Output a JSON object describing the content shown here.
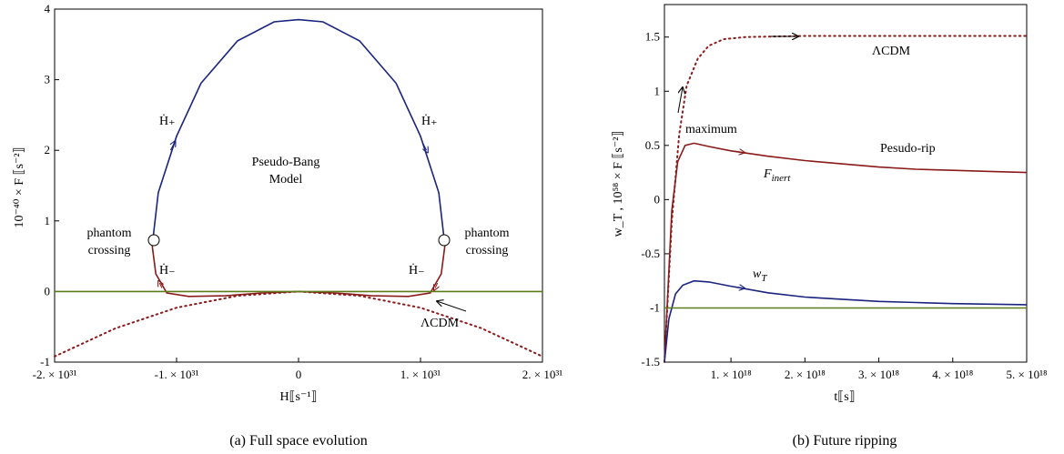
{
  "chart_data": [
    {
      "type": "line",
      "caption": "(a)   Full space evolution",
      "xlabel": "H⟦s⁻¹⟧",
      "ylabel": "10⁻⁴⁰ × F ⟦s⁻²⟧",
      "xlim": [
        -2e+31,
        2e+31
      ],
      "ylim": [
        -1,
        4
      ],
      "xticks": [
        {
          "v": -2e+31,
          "label": "-2. × 10³¹"
        },
        {
          "v": -1e+31,
          "label": "-1. × 10³¹"
        },
        {
          "v": 0,
          "label": "0"
        },
        {
          "v": 1e+31,
          "label": "1. × 10³¹"
        },
        {
          "v": 2e+31,
          "label": "2. × 10³¹"
        }
      ],
      "yticks": [
        {
          "v": -1,
          "label": "-1"
        },
        {
          "v": 0,
          "label": "0"
        },
        {
          "v": 1,
          "label": "1"
        },
        {
          "v": 2,
          "label": "2"
        },
        {
          "v": 3,
          "label": "3"
        },
        {
          "v": 4,
          "label": "4"
        }
      ],
      "series": [
        {
          "key": "upper",
          "color": "#1a237e",
          "style": "solid",
          "points": [
            [
              -1.2e+31,
              0.65
            ],
            [
              -1.15e+31,
              1.4
            ],
            [
              -1e+31,
              2.2
            ],
            [
              -8e+30,
              2.95
            ],
            [
              -5e+30,
              3.55
            ],
            [
              -2e+30,
              3.82
            ],
            [
              0,
              3.85
            ],
            [
              2e+30,
              3.82
            ],
            [
              5e+30,
              3.55
            ],
            [
              8e+30,
              2.95
            ],
            [
              1e+31,
              2.2
            ],
            [
              1.15e+31,
              1.4
            ],
            [
              1.2e+31,
              0.65
            ]
          ]
        },
        {
          "key": "lower",
          "color": "#8b1a1a",
          "style": "solid",
          "points": [
            [
              -1.2e+31,
              0.65
            ],
            [
              -1.17e+31,
              0.25
            ],
            [
              -1.08e+31,
              -0.02
            ],
            [
              -9e+30,
              -0.07
            ],
            [
              -6e+30,
              -0.06
            ],
            [
              -3e+30,
              -0.02
            ],
            [
              0,
              0
            ],
            [
              3e+30,
              -0.02
            ],
            [
              6e+30,
              -0.06
            ],
            [
              9e+30,
              -0.07
            ],
            [
              1.08e+31,
              -0.02
            ],
            [
              1.17e+31,
              0.25
            ],
            [
              1.2e+31,
              0.65
            ]
          ]
        },
        {
          "key": "lcdm",
          "color": "#8b1a1a",
          "style": "dotted",
          "points": [
            [
              -2e+31,
              -0.92
            ],
            [
              -1.5e+31,
              -0.52
            ],
            [
              -1e+31,
              -0.23
            ],
            [
              -5e+30,
              -0.06
            ],
            [
              0,
              0
            ],
            [
              5e+30,
              -0.06
            ],
            [
              1e+31,
              -0.23
            ],
            [
              1.5e+31,
              -0.52
            ],
            [
              2e+31,
              -0.92
            ]
          ]
        },
        {
          "key": "zero",
          "color": "#5a7d1a",
          "style": "solid",
          "points": [
            [
              -2e+31,
              0
            ],
            [
              2e+31,
              0
            ]
          ]
        }
      ],
      "annotations": {
        "h_plus_left": "Ḣ₊",
        "h_plus_right": "Ḣ₊",
        "h_minus_left": "Ḣ₋",
        "h_minus_right": "Ḣ₋",
        "model_line1": "Pseudo-Bang",
        "model_line2": "Model",
        "phantom_left_1": "phantom",
        "phantom_left_2": "crossing",
        "phantom_right_1": "phantom",
        "phantom_right_2": "crossing",
        "lcdm": "ΛCDM"
      }
    },
    {
      "type": "line",
      "caption": "(b)   Future ripping",
      "xlabel": "t⟦s⟧",
      "ylabel": "w_T ,  10⁵⁸ × F ⟦s⁻²⟧",
      "xlim": [
        1e+17,
        5e+18
      ],
      "ylim": [
        -1.5,
        1.8
      ],
      "xticks": [
        {
          "v": 1e+18,
          "label": "1. × 10¹⁸"
        },
        {
          "v": 2e+18,
          "label": "2. × 10¹⁸"
        },
        {
          "v": 3e+18,
          "label": "3. × 10¹⁸"
        },
        {
          "v": 4e+18,
          "label": "4. × 10¹⁸"
        },
        {
          "v": 5e+18,
          "label": "5. × 10¹⁸"
        }
      ],
      "yticks": [
        {
          "v": -1.5,
          "label": "-1.5"
        },
        {
          "v": -1,
          "label": "-1"
        },
        {
          "v": -0.5,
          "label": "-0.5"
        },
        {
          "v": 0,
          "label": "0"
        },
        {
          "v": 0.5,
          "label": "0.5"
        },
        {
          "v": 1,
          "label": "1"
        },
        {
          "v": 1.5,
          "label": "1.5"
        }
      ],
      "series": [
        {
          "key": "lcdm",
          "color": "#8b1a1a",
          "style": "dotted",
          "points": [
            [
              1e+17,
              -1.5
            ],
            [
              2e+17,
              -0.2
            ],
            [
              3e+17,
              0.6
            ],
            [
              4e+17,
              1.05
            ],
            [
              5.5e+17,
              1.3
            ],
            [
              7e+17,
              1.42
            ],
            [
              9e+17,
              1.48
            ],
            [
              1.2e+18,
              1.5
            ],
            [
              2e+18,
              1.51
            ],
            [
              3e+18,
              1.51
            ],
            [
              4e+18,
              1.51
            ],
            [
              5e+18,
              1.51
            ]
          ]
        },
        {
          "key": "finert",
          "color": "#8b1a1a",
          "style": "solid",
          "points": [
            [
              1e+17,
              -1.5
            ],
            [
              1.5e+17,
              -0.8
            ],
            [
              2e+17,
              -0.1
            ],
            [
              2.8e+17,
              0.35
            ],
            [
              3.8e+17,
              0.5
            ],
            [
              5e+17,
              0.52
            ],
            [
              7e+17,
              0.49
            ],
            [
              1e+18,
              0.45
            ],
            [
              1.5e+18,
              0.4
            ],
            [
              2e+18,
              0.36
            ],
            [
              2.5e+18,
              0.33
            ],
            [
              3e+18,
              0.3
            ],
            [
              3.5e+18,
              0.28
            ],
            [
              4e+18,
              0.27
            ],
            [
              4.5e+18,
              0.26
            ],
            [
              5e+18,
              0.25
            ]
          ]
        },
        {
          "key": "wt",
          "color": "#1a237e",
          "style": "solid",
          "points": [
            [
              1e+17,
              -1.5
            ],
            [
              1.6e+17,
              -1.1
            ],
            [
              2.5e+17,
              -0.87
            ],
            [
              3.5e+17,
              -0.79
            ],
            [
              5e+17,
              -0.75
            ],
            [
              7e+17,
              -0.76
            ],
            [
              1e+18,
              -0.8
            ],
            [
              1.5e+18,
              -0.86
            ],
            [
              2e+18,
              -0.9
            ],
            [
              2.5e+18,
              -0.92
            ],
            [
              3e+18,
              -0.94
            ],
            [
              3.5e+18,
              -0.95
            ],
            [
              4e+18,
              -0.96
            ],
            [
              4.5e+18,
              -0.965
            ],
            [
              5e+18,
              -0.97
            ]
          ]
        },
        {
          "key": "minus_one",
          "color": "#5a7d1a",
          "style": "solid",
          "points": [
            [
              1e+17,
              -1
            ],
            [
              5e+18,
              -1
            ]
          ]
        }
      ],
      "annotations": {
        "lcdm": "ΛCDM",
        "maximum": "maximum",
        "pseudo_rip": "Pesudo-rip",
        "finert_main": "F",
        "finert_sub": "inert",
        "wt_main": "w",
        "wt_sub": "T"
      }
    }
  ]
}
